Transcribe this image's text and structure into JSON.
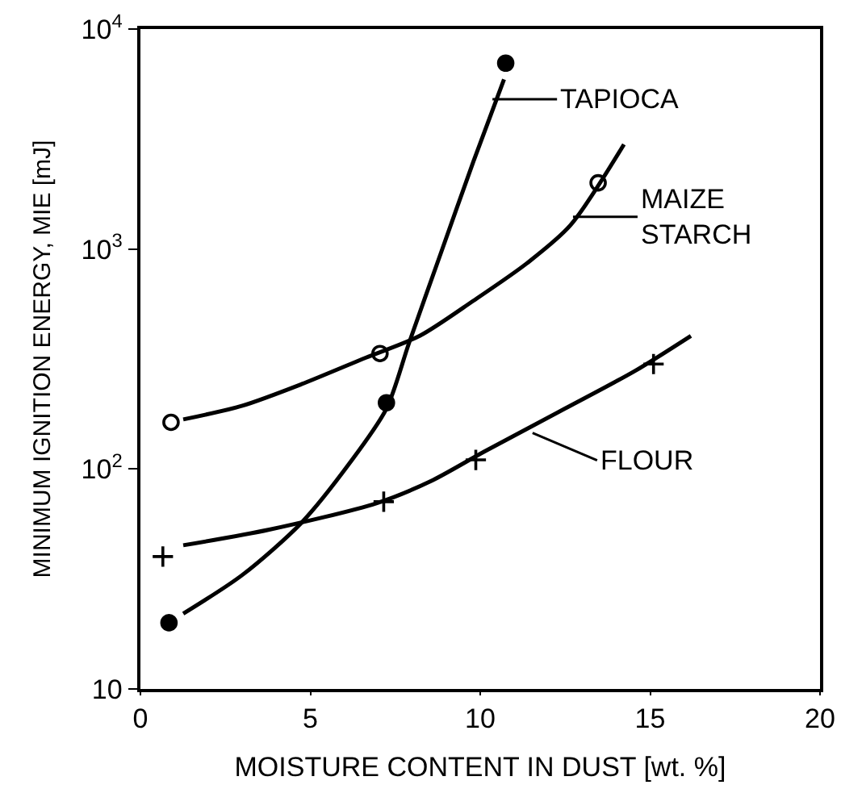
{
  "chart_data": {
    "type": "scatter",
    "xlabel": "MOISTURE CONTENT IN DUST [wt. %]",
    "ylabel": "MINIMUM IGNITION ENERGY, MIE [mJ]",
    "log": "y",
    "xlim": [
      0,
      20
    ],
    "xticks": [
      0,
      5,
      10,
      15,
      20
    ],
    "ylim": [
      10,
      10000
    ],
    "yticks": [
      10,
      {
        "value": 100,
        "label": "10$^{2}$"
      },
      {
        "value": 1000,
        "label": "10$^{3}$"
      },
      {
        "value": 10000,
        "label": "10$^{4}$"
      }
    ],
    "series": [
      {
        "marker": "circle",
        "color": "#000000",
        "x": [
          0.84,
          7.24,
          10.75
        ],
        "values": [
          20,
          200,
          7000
        ]
      },
      {
        "marker": "circle-open",
        "color": "#000000",
        "x": [
          0.9,
          7.05,
          13.47
        ],
        "values": [
          163,
          335,
          2000
        ]
      },
      {
        "marker": "cross",
        "color": "#000000",
        "x": [
          0.66,
          7.16,
          9.87,
          15.1
        ],
        "values": [
          40,
          71,
          110,
          300
        ]
      },
      {
        "type": "line",
        "marker": "none",
        "line_style": "solid",
        "color": "#000000",
        "x": [
          1.26,
          3.0,
          4.74,
          6.17,
          7.24,
          7.9,
          8.85,
          9.8,
          10.7
        ],
        "values": [
          22,
          33,
          57,
          107,
          188,
          372,
          966,
          2500,
          5900
        ]
      },
      {
        "type": "line",
        "marker": "none",
        "line_style": "solid",
        "color": "#000000",
        "x": [
          1.26,
          3.0,
          4.74,
          6.64,
          8.22,
          9.8,
          11.38,
          12.65,
          14.23
        ],
        "values": [
          168,
          194,
          243,
          321,
          403,
          582,
          863,
          1280,
          2990
        ]
      },
      {
        "type": "line",
        "marker": "none",
        "line_style": "solid",
        "color": "#000000",
        "x": [
          1.26,
          3.79,
          6.96,
          8.54,
          10.12,
          12.49,
          14.55,
          16.2
        ],
        "values": [
          45,
          53,
          70,
          88,
          120,
          188,
          279,
          403
        ]
      }
    ],
    "annotations": [
      {
        "text": "TAPIOCA",
        "x": 10.36,
        "y": 4800
      },
      {
        "text": "MAIZE\nSTARCH",
        "x": 12.73,
        "y": 1400
      },
      {
        "text": "FLOUR",
        "x": 11.54,
        "y": 146
      }
    ]
  }
}
